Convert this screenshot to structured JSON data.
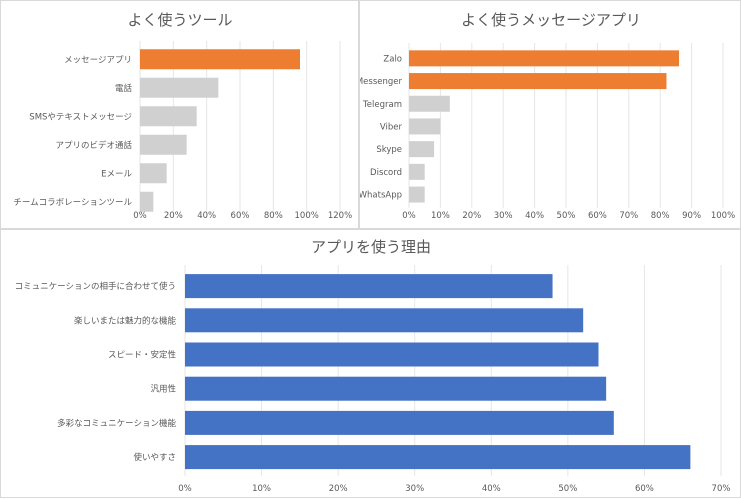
{
  "colors": {
    "highlight": "#ED7D31",
    "gray": "#D0D0D0",
    "blue": "#4472C4"
  },
  "chart_data": [
    {
      "type": "bar",
      "orientation": "horizontal",
      "title": "よく使うツール",
      "categories": [
        "メッセージアプリ",
        "電話",
        "SMSやテキストメッセージ",
        "アプリのビデオ通話",
        "Eメール",
        "チームコラボレーションツール"
      ],
      "values": [
        96,
        47,
        34,
        28,
        16,
        8
      ],
      "value_unit": "%",
      "xlim": [
        0,
        120
      ],
      "ticks": [
        "0%",
        "20%",
        "40%",
        "60%",
        "80%",
        "100%",
        "120%"
      ],
      "highlighted": [
        0
      ],
      "grid": true
    },
    {
      "type": "bar",
      "orientation": "horizontal",
      "title": "よく使うメッセージアプリ",
      "categories": [
        "Zalo",
        "Messenger",
        "Telegram",
        "Viber",
        "Skype",
        "Discord",
        "WhatsApp"
      ],
      "values": [
        86,
        82,
        13,
        10,
        8,
        5,
        5
      ],
      "value_unit": "%",
      "xlim": [
        0,
        100
      ],
      "ticks": [
        "0%",
        "10%",
        "20%",
        "30%",
        "40%",
        "50%",
        "60%",
        "70%",
        "80%",
        "90%",
        "100%"
      ],
      "highlighted": [
        0,
        1
      ],
      "grid": true
    },
    {
      "type": "bar",
      "orientation": "horizontal",
      "title": "アプリを使う理由",
      "categories": [
        "コミュニケーションの相手に合わせて使う",
        "楽しいまたは魅力的な機能",
        "スピード・安定性",
        "汎用性",
        "多彩なコミュニケーション機能",
        "使いやすさ"
      ],
      "values": [
        48,
        52,
        54,
        55,
        56,
        66
      ],
      "value_unit": "%",
      "xlim": [
        0,
        70
      ],
      "ticks": [
        "0%",
        "10%",
        "20%",
        "30%",
        "40%",
        "50%",
        "60%",
        "70%"
      ],
      "grid": true
    }
  ]
}
